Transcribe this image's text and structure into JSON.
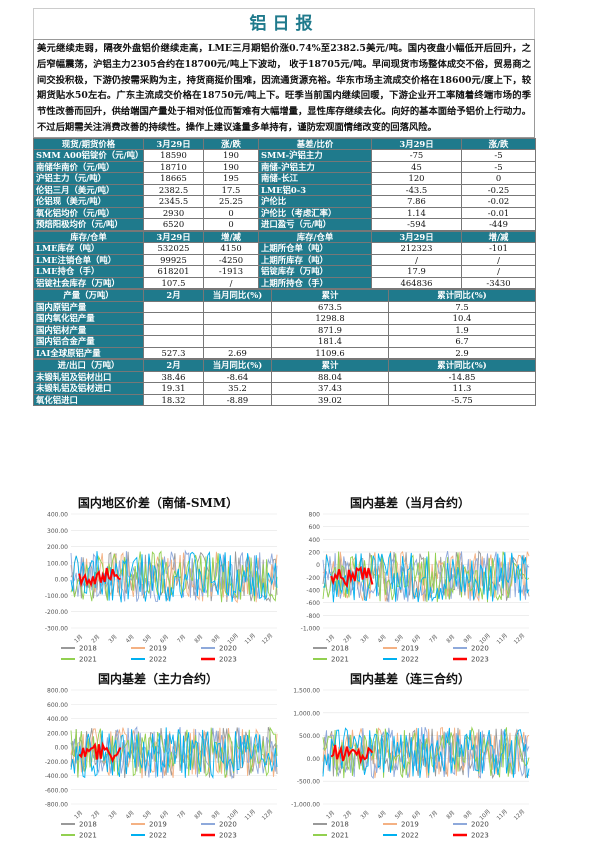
{
  "title": "铝日报",
  "paragraph": "美元继续走弱，隔夜外盘铝价继续走高，LME三月期铝价涨0.74%至2382.5美元/吨。国内夜盘小幅低开后回升，之后窄幅震荡，沪铝主力2305合约在18700元/吨上下波动， 收于18705元/吨。早间现货市场整体成交不俗，贸易商之间交投积极，下游仍按需采购为主，持货商挺价围难，因流通货源充裕。华东市场主流成交价格在18600元/度上下，较期货贴水50左右。广东主流成交价格在18750元/吨上下。旺季当前国内继续回暖，下游企业开工率随着终端市场的季节性改善而回升，供给端国产量处于相对低位而暂难有大幅增量，显性库存继续去化。向好的基本面给予铝价上行动力。不过后期需关注消费改善的持续性。操作上建议逢量多单持有，谨防宏观面情绪改变的回落风险。",
  "price_table": {
    "headers": [
      "现货/期货价格",
      "3月29日",
      "涨/跌",
      "基差/比价",
      "3月29日",
      "涨/跌"
    ],
    "rows": [
      [
        "SMM A00铝锭价（元/吨）",
        "18590",
        "190",
        "SMM-沪铝主力",
        "-75",
        "-5"
      ],
      [
        "南储华南价（元/吨）",
        "18710",
        "190",
        "南储-沪铝主力",
        "45",
        "-5"
      ],
      [
        "沪铝主力（元/吨）",
        "18665",
        "195",
        "南储-长江",
        "120",
        "0"
      ],
      [
        "伦铝三月（美元/吨）",
        "2382.5",
        "17.5",
        "LME铝0-3",
        "-43.5",
        "-0.25"
      ],
      [
        "伦铝现（美元/吨）",
        "2345.5",
        "25.25",
        "沪伦比",
        "7.86",
        "-0.02"
      ],
      [
        "氧化铝均价（元/吨）",
        "2930",
        "0",
        "沪伦比（考虑汇率）",
        "1.14",
        "-0.01"
      ],
      [
        "预焙阳极均价（元/吨）",
        "6520",
        "0",
        "进口盈亏（元/吨）",
        "-594",
        "-449"
      ]
    ]
  },
  "stock_table": {
    "headers": [
      "库存/仓单",
      "3月29日",
      "增/减",
      "库存/仓单",
      "3月29日",
      "增/减"
    ],
    "rows": [
      [
        "LME库存（吨）",
        "532025",
        "4150",
        "上期所仓单（吨）",
        "212323",
        "-101"
      ],
      [
        "LME注销仓单（吨）",
        "99925",
        "-4250",
        "上期所库存（吨）",
        "/",
        "/"
      ],
      [
        "LME持仓（手）",
        "618201",
        "-1913",
        "铝锭库存（万吨）",
        "17.9",
        "/"
      ],
      [
        "铝锭社会库存（万吨）",
        "107.5",
        "/",
        "上期所持仓（手）",
        "464836",
        "-3430"
      ]
    ]
  },
  "output_table": {
    "headers": [
      "产量（万吨）",
      "2月",
      "当月同比(%)",
      "累计",
      "累计同比(%)"
    ],
    "rows": [
      [
        "国内原铝产量",
        "",
        "",
        "673.5",
        "7.5"
      ],
      [
        "国内氧化铝产量",
        "",
        "",
        "1298.8",
        "10.4"
      ],
      [
        "国内铝材产量",
        "",
        "",
        "871.9",
        "1.9"
      ],
      [
        "国内铝合金产量",
        "",
        "",
        "181.4",
        "6.7"
      ],
      [
        "IAI全球原铝产量",
        "527.3",
        "2.69",
        "1109.6",
        "2.9"
      ]
    ]
  },
  "trade_table": {
    "headers": [
      "进/出口（万吨）",
      "2月",
      "当月同比(%)",
      "累计",
      "累计同比(%)"
    ],
    "rows": [
      [
        "未锻轧铝及铝材出口",
        "38.46",
        "-8.64",
        "88.04",
        "-14.85"
      ],
      [
        "未锻轧铝及铝材进口",
        "19.31",
        "35.2",
        "37.43",
        "11.3"
      ],
      [
        "氧化铝进口",
        "18.32",
        "-8.89",
        "39.02",
        "-5.75"
      ]
    ]
  },
  "legend_years": [
    "2018",
    "2019",
    "2020",
    "2021",
    "2022",
    "2023"
  ],
  "series_colors": [
    "#999999",
    "#f4b183",
    "#8ea9db",
    "#92d050",
    "#00b0f0",
    "#ff0000"
  ],
  "months": [
    "1月",
    "2月",
    "3月",
    "4月",
    "5月",
    "6月",
    "7月",
    "8月",
    "9月",
    "10月",
    "11月",
    "12月"
  ],
  "chart_data": [
    {
      "type": "line",
      "title": "国内地区价差（南储-SMM）",
      "ylim": [
        -300,
        400
      ],
      "yticks": [
        "400.00",
        "300.00",
        "200.00",
        "100.00",
        "0.00",
        "-100.00",
        "-200.00",
        "-300.00"
      ],
      "series": [
        {
          "name": "2018"
        },
        {
          "name": "2019"
        },
        {
          "name": "2020"
        },
        {
          "name": "2021"
        },
        {
          "name": "2022"
        },
        {
          "name": "2023"
        }
      ]
    },
    {
      "type": "line",
      "title": "国内基差（当月合约）",
      "ylim": [
        -1000,
        800
      ],
      "yticks": [
        "800",
        "600",
        "400",
        "200",
        "0",
        "-200",
        "-400",
        "-600",
        "-800",
        "-1,000"
      ],
      "series": [
        {
          "name": "2018"
        },
        {
          "name": "2019"
        },
        {
          "name": "2020"
        },
        {
          "name": "2021"
        },
        {
          "name": "2022"
        },
        {
          "name": "2023"
        }
      ]
    },
    {
      "type": "line",
      "title": "国内基差（主力合约）",
      "ylim": [
        -800,
        800
      ],
      "yticks": [
        "800.00",
        "600.00",
        "400.00",
        "200.00",
        "0.00",
        "-200.00",
        "-400.00",
        "-600.00",
        "-800.00"
      ],
      "series": [
        {
          "name": "2018"
        },
        {
          "name": "2019"
        },
        {
          "name": "2020"
        },
        {
          "name": "2021"
        },
        {
          "name": "2022"
        },
        {
          "name": "2023"
        }
      ]
    },
    {
      "type": "line",
      "title": "国内基差（连三合约）",
      "ylim": [
        -1000,
        1500
      ],
      "yticks": [
        "1,500.00",
        "1,000.00",
        "500.00",
        "0.00",
        "-500.00",
        "-1,000.00"
      ],
      "series": [
        {
          "name": "2018"
        },
        {
          "name": "2019"
        },
        {
          "name": "2020"
        },
        {
          "name": "2021"
        },
        {
          "name": "2022"
        },
        {
          "name": "2023"
        }
      ]
    }
  ]
}
